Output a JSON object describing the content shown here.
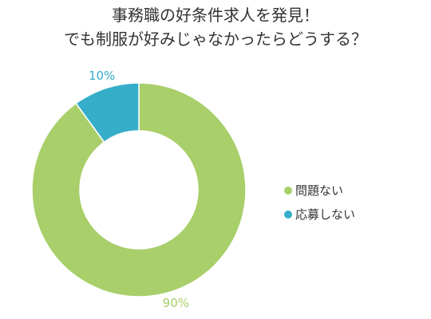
{
  "title": {
    "line1": "事務職の好条件求人を発見！",
    "line2": "でも制服が好みじゃなかったらどうする？"
  },
  "colors": {
    "green": "#a8cf6a",
    "blue": "#36adc9",
    "text": "#333333"
  },
  "chart_data": {
    "type": "pie",
    "donut": true,
    "title": "事務職の好条件求人を発見！でも制服が好みじゃなかったらどうする？",
    "legend_position": "right",
    "series": [
      {
        "name": "問題ない",
        "value": 90,
        "label": "90%",
        "color": "#a8cf6a"
      },
      {
        "name": "応募しない",
        "value": 10,
        "label": "10%",
        "color": "#36adc9"
      }
    ]
  }
}
